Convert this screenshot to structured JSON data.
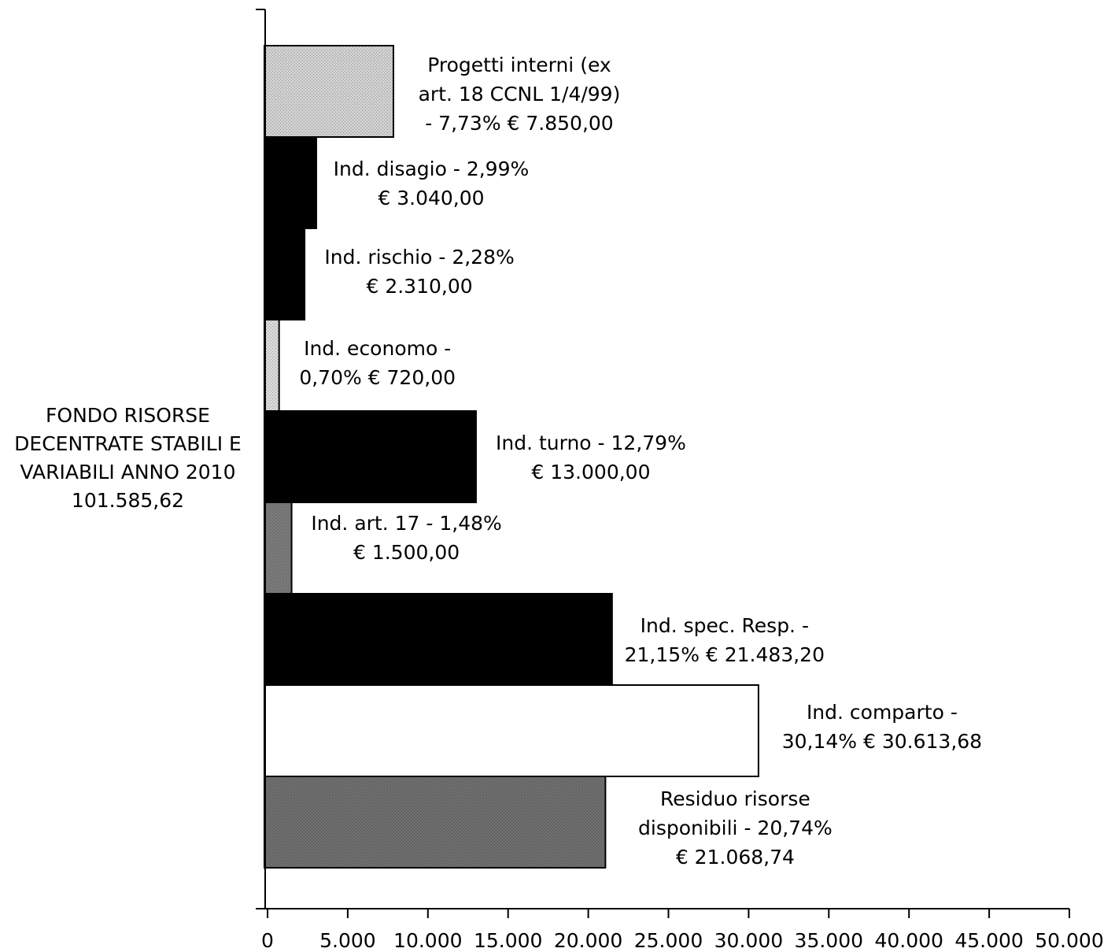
{
  "chart_data": {
    "type": "bar",
    "orientation": "horizontal",
    "stacked": false,
    "category_label": "FONDO RISORSE\nDECENTRATE STABILI E\nVARIABILI ANNO 2010\n101.585,62",
    "xlim": [
      0,
      50000
    ],
    "x_ticks": [
      "0",
      "5.000",
      "10.000",
      "15.000",
      "20.000",
      "25.000",
      "30.000",
      "35.000",
      "40.000",
      "45.000",
      "50.000"
    ],
    "x_tick_values": [
      0,
      5000,
      10000,
      15000,
      20000,
      25000,
      30000,
      35000,
      40000,
      45000,
      50000
    ],
    "grid": false,
    "legend": "none",
    "series": [
      {
        "label": "Progetti interni (ex\nart. 18 CCNL 1/4/99)\n- 7,73% € 7.850,00",
        "value": 7850,
        "fill": "#cfcfcf"
      },
      {
        "label": "Ind. disagio - 2,99%\n€ 3.040,00",
        "value": 3040,
        "fill": "#000000"
      },
      {
        "label": "Ind. rischio - 2,28%\n€ 2.310,00",
        "value": 2310,
        "fill": "#000000"
      },
      {
        "label": "Ind. economo -\n0,70% € 720,00",
        "value": 720,
        "fill": "#d8d8d8"
      },
      {
        "label": "Ind. turno - 12,79%\n€ 13.000,00",
        "value": 13000,
        "fill": "#000000"
      },
      {
        "label": "Ind. art. 17 - 1,48%\n€ 1.500,00",
        "value": 1500,
        "fill": "#7a7a7a"
      },
      {
        "label": "Ind. spec. Resp. -\n21,15% € 21.483,20",
        "value": 21483.2,
        "fill": "#000000"
      },
      {
        "label": "Ind.     comparto     -\n30,14% € 30.613,68",
        "value": 30613.68,
        "fill": "#ffffff"
      },
      {
        "label": "Residuo risorse\ndisponibili - 20,74%\n€ 21.068,74",
        "value": 21068.74,
        "fill": "#6e6e6e"
      }
    ]
  }
}
